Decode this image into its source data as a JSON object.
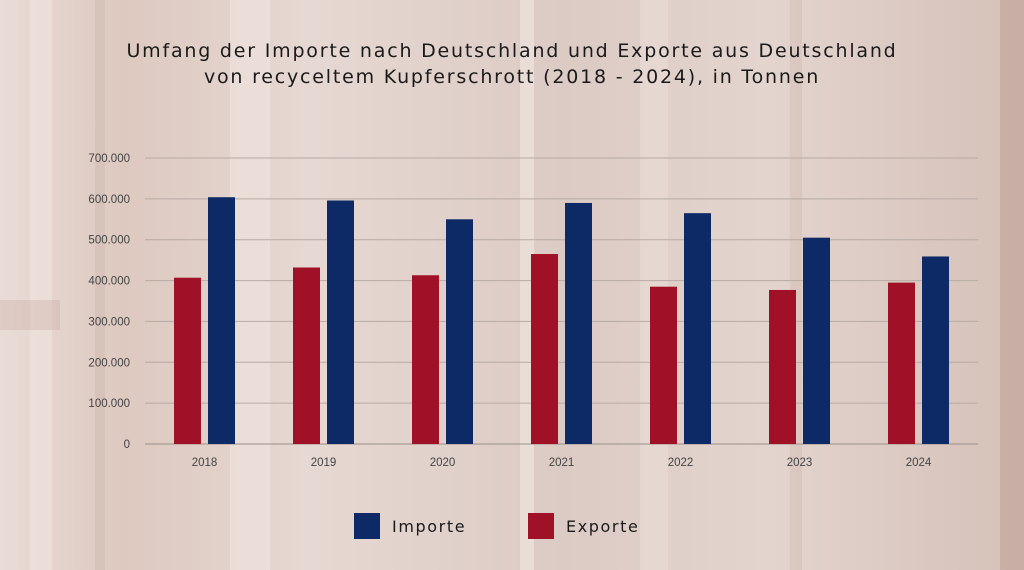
{
  "chart_data": {
    "type": "bar",
    "title": "Umfang der Importe nach Deutschland und Exporte aus Deutschland",
    "subtitle": "von recyceltem Kupferschrott (2018 - 2024), in Tonnen",
    "categories": [
      "2018",
      "2019",
      "2020",
      "2021",
      "2022",
      "2023",
      "2024"
    ],
    "series": [
      {
        "name": "Exporte",
        "color": "#a01026",
        "values": [
          407000,
          432000,
          413000,
          465000,
          385000,
          377000,
          395000
        ]
      },
      {
        "name": "Importe",
        "color": "#0e2a66",
        "values": [
          604000,
          596000,
          550000,
          590000,
          565000,
          505000,
          459000
        ]
      }
    ],
    "ylim": [
      0,
      700000
    ],
    "yticks": [
      0,
      100000,
      200000,
      300000,
      400000,
      500000,
      600000,
      700000
    ],
    "ytick_labels": [
      "0",
      "100.000",
      "200.000",
      "300.000",
      "400.000",
      "500.000",
      "600.000",
      "700.000"
    ],
    "grid": true,
    "legend_position": "bottom",
    "legend": [
      {
        "label": "Importe",
        "color": "#0e2a66"
      },
      {
        "label": "Exporte",
        "color": "#a01026"
      }
    ]
  }
}
